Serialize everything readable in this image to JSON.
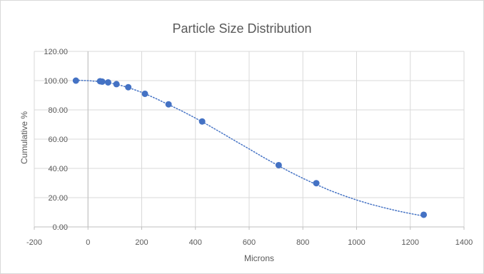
{
  "chart_data": {
    "type": "scatter",
    "title": "Particle Size Distribution",
    "xlabel": "Microns",
    "ylabel": "Cumulative %",
    "xlim": [
      -200,
      1400
    ],
    "ylim": [
      0,
      120
    ],
    "x_ticks": [
      "-200",
      "0",
      "200",
      "400",
      "600",
      "800",
      "1000",
      "1200",
      "1400"
    ],
    "y_ticks": [
      "0.00",
      "20.00",
      "40.00",
      "60.00",
      "80.00",
      "100.00",
      "120.00"
    ],
    "grid": true,
    "legend": "none",
    "colors": {
      "points": "#4472c4",
      "trendline": "#4472c4",
      "grid": "#d9d9d9",
      "axis": "#bfbfbf"
    },
    "series": [
      {
        "x": [
          -45,
          45,
          53,
          75,
          106,
          150,
          212,
          300,
          425,
          710,
          850,
          1250
        ],
        "y": [
          100.0,
          99.6,
          99.3,
          98.8,
          97.6,
          95.5,
          91.0,
          83.8,
          72.1,
          42.2,
          29.9,
          8.3
        ]
      }
    ],
    "trendline": {
      "style": "dotted",
      "x": [
        -45,
        0,
        50,
        100,
        150,
        200,
        250,
        300,
        350,
        400,
        450,
        500,
        550,
        600,
        650,
        700,
        750,
        800,
        850,
        900,
        950,
        1000,
        1050,
        1100,
        1150,
        1200,
        1250
      ],
      "y": [
        100.3,
        100.0,
        99.2,
        97.8,
        95.3,
        92.0,
        88.0,
        83.6,
        79.2,
        74.4,
        69.3,
        64.0,
        58.6,
        53.3,
        47.9,
        42.8,
        37.8,
        33.2,
        29.0,
        25.0,
        21.5,
        18.4,
        15.6,
        13.2,
        11.0,
        9.1,
        7.4
      ]
    }
  }
}
